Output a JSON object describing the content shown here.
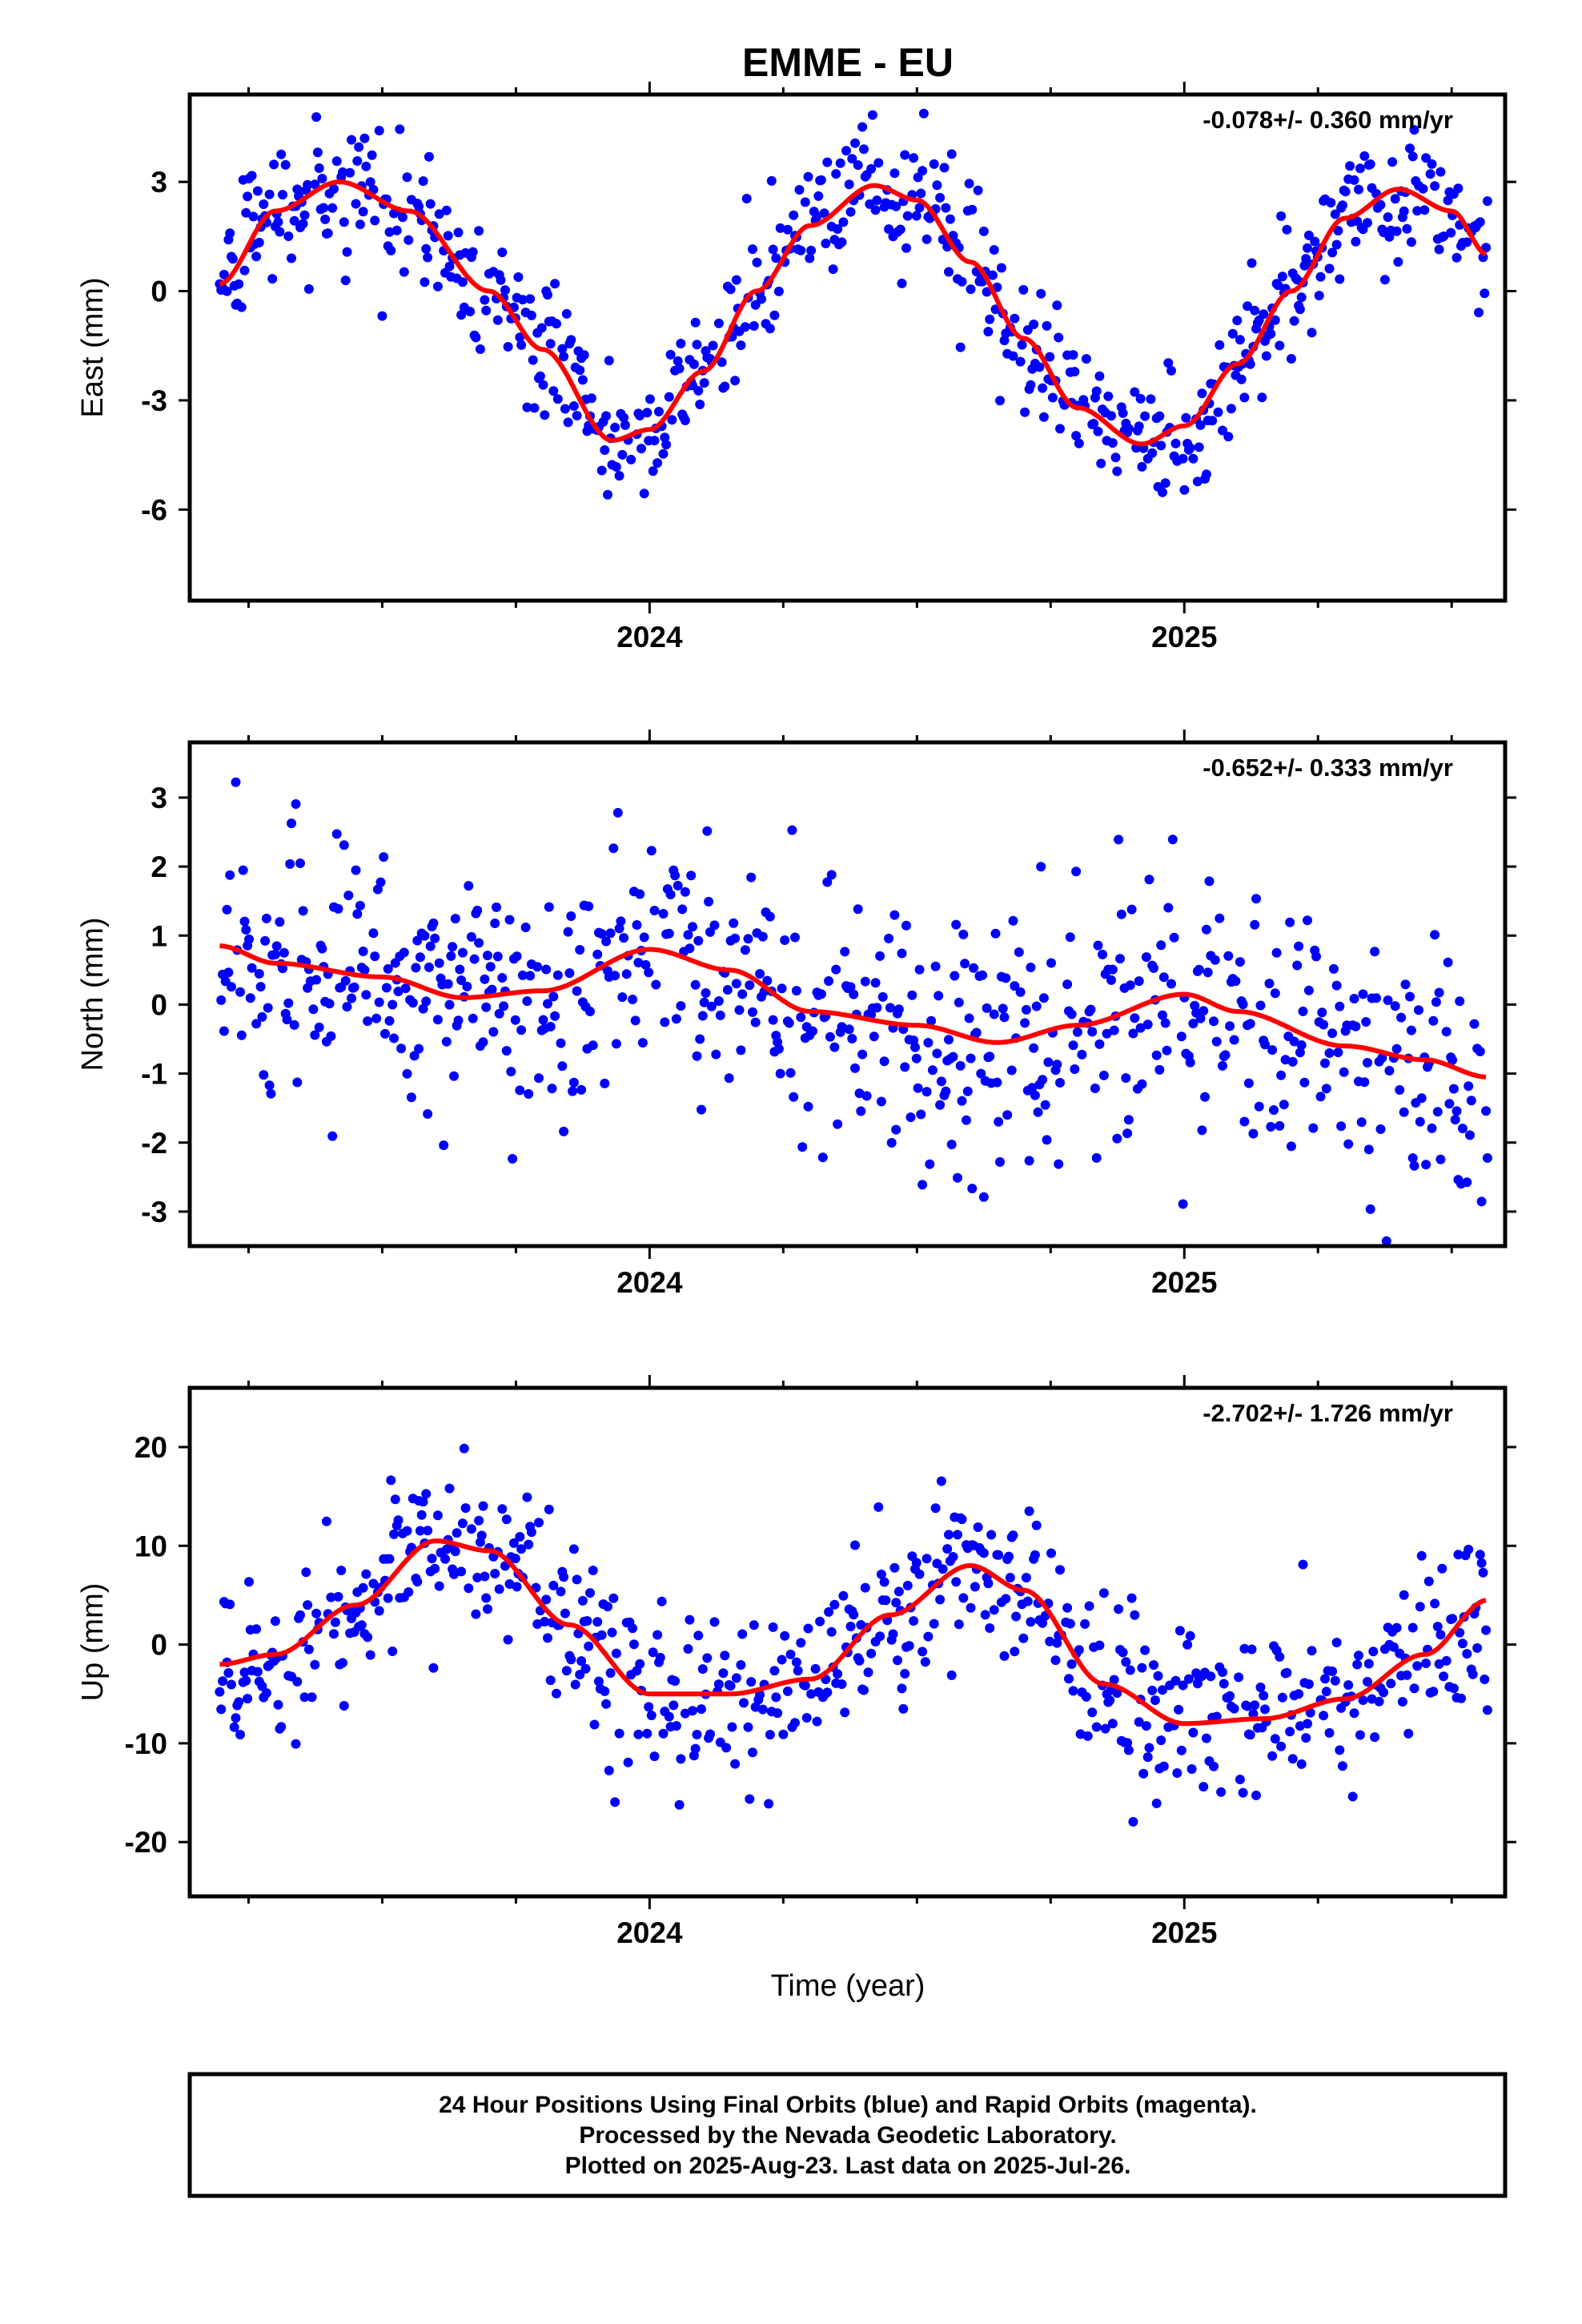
{
  "title": "EMME - EU",
  "xlabel": "Time (year)",
  "footer": {
    "line1": "24 Hour Positions Using Final Orbits (blue) and Rapid Orbits (magenta).",
    "line2": "Processed by the Nevada Geodetic Laboratory.",
    "line3": "Plotted on 2025-Aug-23. Last data on 2025-Jul-26."
  },
  "colors": {
    "points": "#0000ff",
    "model": "#ff0000",
    "axes": "#000000"
  },
  "chart_data": [
    {
      "type": "scatter",
      "component": "east",
      "ylabel": "East (mm)",
      "rate": "-0.078+/- 0.360 mm/yr",
      "xlim": [
        2023.14,
        2025.6
      ],
      "ylim": [
        -8.5,
        5.4
      ],
      "yticks": [
        -6,
        -3,
        0,
        3
      ],
      "xticks": [
        2024,
        2025
      ],
      "data_range": [
        2023.196,
        2025.567
      ],
      "model_points": [
        [
          2023.196,
          0.2
        ],
        [
          2023.3,
          2.2
        ],
        [
          2023.42,
          3.0
        ],
        [
          2023.55,
          2.2
        ],
        [
          2023.7,
          0.0
        ],
        [
          2023.8,
          -1.6
        ],
        [
          2023.93,
          -4.1
        ],
        [
          2024.0,
          -3.8
        ],
        [
          2024.1,
          -2.2
        ],
        [
          2024.2,
          0.0
        ],
        [
          2024.3,
          1.8
        ],
        [
          2024.42,
          2.9
        ],
        [
          2024.5,
          2.5
        ],
        [
          2024.6,
          0.8
        ],
        [
          2024.7,
          -1.3
        ],
        [
          2024.8,
          -3.2
        ],
        [
          2024.92,
          -4.2
        ],
        [
          2025.0,
          -3.7
        ],
        [
          2025.1,
          -2.0
        ],
        [
          2025.2,
          0.0
        ],
        [
          2025.3,
          2.0
        ],
        [
          2025.4,
          2.8
        ],
        [
          2025.5,
          2.2
        ],
        [
          2025.567,
          1.0
        ]
      ],
      "noise_sd": 0.9
    },
    {
      "type": "scatter",
      "component": "north",
      "ylabel": "North (mm)",
      "rate": "-0.652+/- 0.333 mm/yr",
      "xlim": [
        2023.14,
        2025.6
      ],
      "ylim": [
        -3.5,
        3.8
      ],
      "yticks": [
        -3,
        -2,
        -1,
        0,
        1,
        2,
        3
      ],
      "xticks": [
        2024,
        2025
      ],
      "data_range": [
        2023.196,
        2025.567
      ],
      "model_points": [
        [
          2023.196,
          0.85
        ],
        [
          2023.3,
          0.6
        ],
        [
          2023.5,
          0.4
        ],
        [
          2023.65,
          0.1
        ],
        [
          2023.8,
          0.2
        ],
        [
          2024.0,
          0.8
        ],
        [
          2024.15,
          0.5
        ],
        [
          2024.3,
          -0.1
        ],
        [
          2024.5,
          -0.3
        ],
        [
          2024.65,
          -0.55
        ],
        [
          2024.8,
          -0.3
        ],
        [
          2025.0,
          0.15
        ],
        [
          2025.1,
          -0.1
        ],
        [
          2025.3,
          -0.6
        ],
        [
          2025.45,
          -0.8
        ],
        [
          2025.567,
          -1.05
        ]
      ],
      "noise_sd": 0.95
    },
    {
      "type": "scatter",
      "component": "up",
      "ylabel": "Up (mm)",
      "rate": "-2.702+/- 1.726 mm/yr",
      "xlim": [
        2023.14,
        2025.6
      ],
      "ylim": [
        -25.5,
        26.0
      ],
      "yticks": [
        -20,
        -10,
        0,
        10,
        20
      ],
      "xticks": [
        2024,
        2025
      ],
      "data_range": [
        2023.196,
        2025.567
      ],
      "model_points": [
        [
          2023.196,
          -2.0
        ],
        [
          2023.3,
          -1.0
        ],
        [
          2023.45,
          4.0
        ],
        [
          2023.6,
          10.5
        ],
        [
          2023.7,
          9.5
        ],
        [
          2023.85,
          2.0
        ],
        [
          2024.0,
          -5.0
        ],
        [
          2024.15,
          -5.0
        ],
        [
          2024.3,
          -3.5
        ],
        [
          2024.45,
          3.0
        ],
        [
          2024.6,
          8.0
        ],
        [
          2024.7,
          5.5
        ],
        [
          2024.85,
          -4.0
        ],
        [
          2025.0,
          -8.0
        ],
        [
          2025.15,
          -7.5
        ],
        [
          2025.3,
          -5.5
        ],
        [
          2025.45,
          -1.0
        ],
        [
          2025.567,
          4.5
        ]
      ],
      "noise_sd": 4.5
    }
  ]
}
